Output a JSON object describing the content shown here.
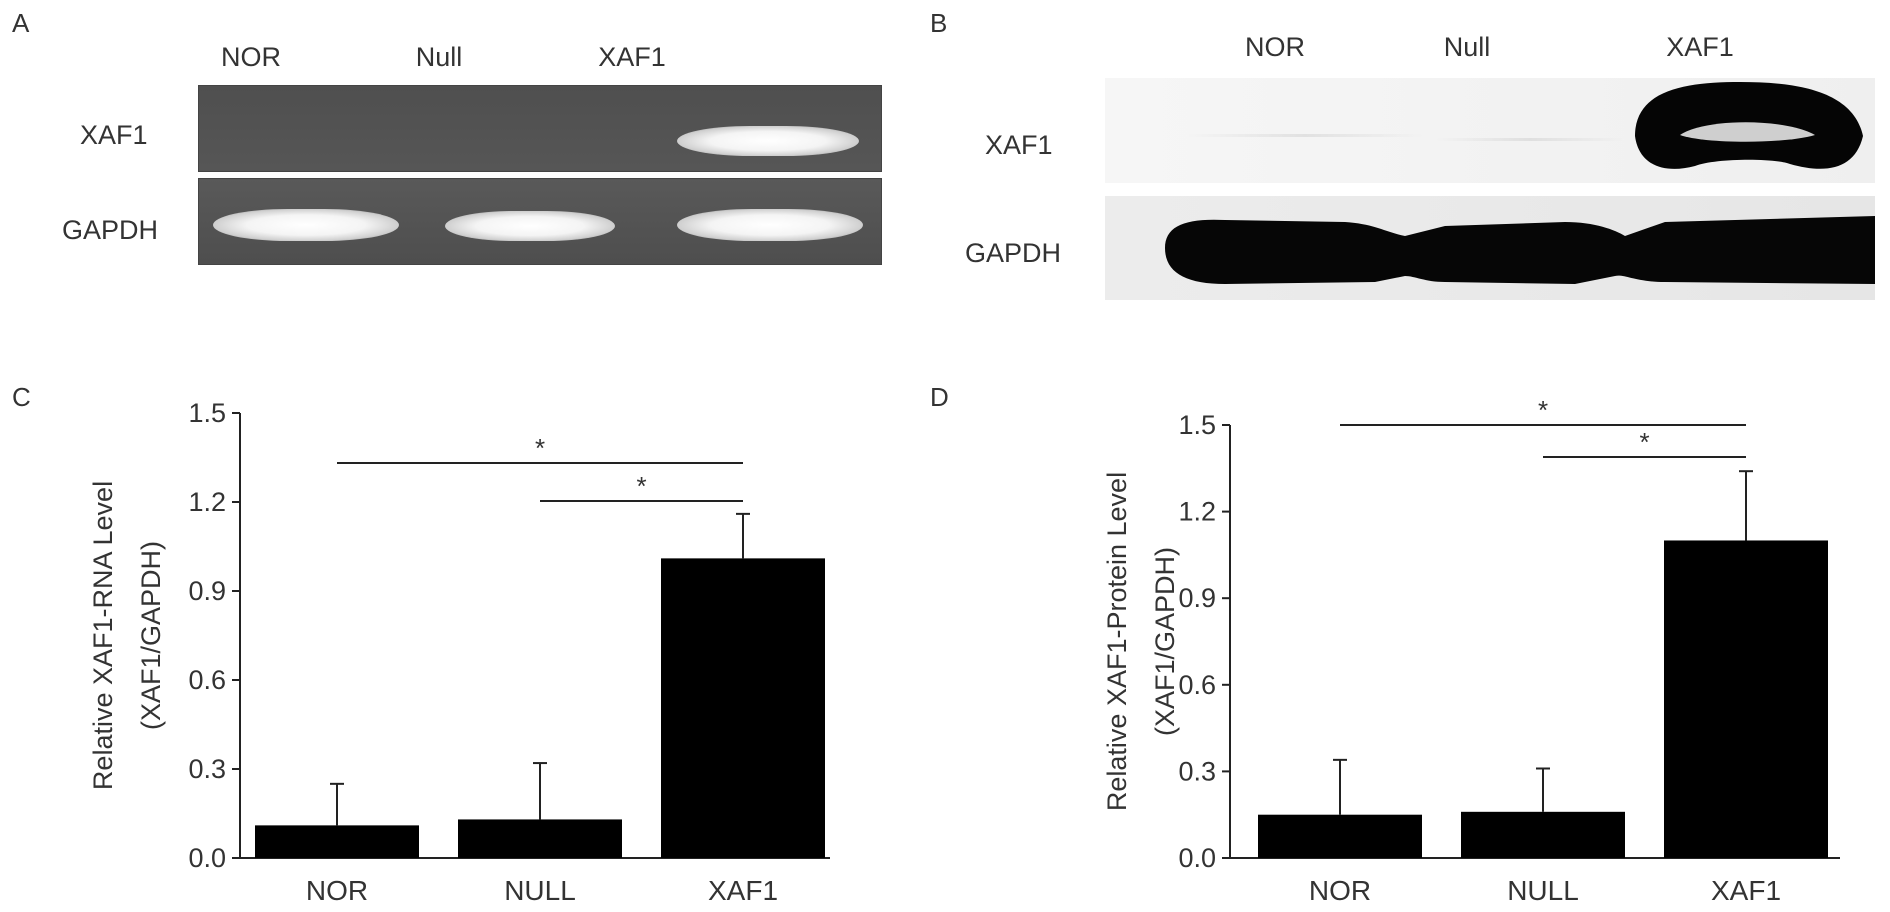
{
  "panels": {
    "A": {
      "letter": "A",
      "lanes": [
        "NOR",
        "Null",
        "XAF1"
      ],
      "rows": [
        "XAF1",
        "GAPDH"
      ]
    },
    "B": {
      "letter": "B",
      "lanes": [
        "NOR",
        "Null",
        "XAF1"
      ],
      "rows": [
        "XAF1",
        "GAPDH"
      ]
    }
  },
  "chart_data": [
    {
      "panel": "C",
      "type": "bar",
      "categories": [
        "NOR",
        "NULL",
        "XAF1"
      ],
      "values": [
        0.11,
        0.13,
        1.01
      ],
      "errors": [
        0.14,
        0.19,
        0.15
      ],
      "ylabel": "Relative XAF1-RNA Level (XAF1/GAPDH)",
      "ylabel_line1": "Relative XAF1-RNA Level",
      "ylabel_line2": "(XAF1/GAPDH)",
      "ylim": [
        0,
        1.5
      ],
      "yticks": [
        "0.0",
        "0.3",
        "0.6",
        "0.9",
        "1.2",
        "1.5"
      ],
      "bar_color": "#000000",
      "significance": [
        {
          "from": "NOR",
          "to": "XAF1",
          "label": "*"
        },
        {
          "from": "NULL",
          "to": "XAF1",
          "label": "*"
        }
      ]
    },
    {
      "panel": "D",
      "type": "bar",
      "categories": [
        "NOR",
        "NULL",
        "XAF1"
      ],
      "values": [
        0.15,
        0.16,
        1.1
      ],
      "errors": [
        0.19,
        0.15,
        0.24
      ],
      "ylabel": "Relative XAF1-Protein Level (XAF1/GAPDH)",
      "ylabel_line1": "Relative XAF1-Protein Level",
      "ylabel_line2": "(XAF1/GAPDH)",
      "ylim": [
        0,
        1.5
      ],
      "yticks": [
        "0.0",
        "0.3",
        "0.6",
        "0.9",
        "1.2",
        "1.5"
      ],
      "bar_color": "#000000",
      "significance": [
        {
          "from": "NOR",
          "to": "XAF1",
          "label": "*"
        },
        {
          "from": "NULL",
          "to": "XAF1",
          "label": "*"
        }
      ]
    }
  ]
}
